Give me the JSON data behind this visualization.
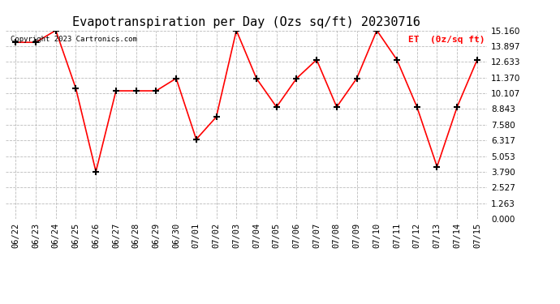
{
  "title": "Evapotranspiration per Day (Ozs sq/ft) 20230716",
  "legend_label": "ET  (0z/sq ft)",
  "copyright_text": "Copyright 2023 Cartronics.com",
  "dates": [
    "06/22",
    "06/23",
    "06/24",
    "06/25",
    "06/26",
    "06/27",
    "06/28",
    "06/29",
    "06/30",
    "07/01",
    "07/02",
    "07/03",
    "07/04",
    "07/05",
    "07/06",
    "07/07",
    "07/08",
    "07/09",
    "07/10",
    "07/11",
    "07/12",
    "07/13",
    "07/14",
    "07/15"
  ],
  "values": [
    14.2,
    14.2,
    15.16,
    10.5,
    3.8,
    10.3,
    10.3,
    10.3,
    11.3,
    6.4,
    8.2,
    15.16,
    11.3,
    9.0,
    11.3,
    12.8,
    9.0,
    11.3,
    15.16,
    12.8,
    9.0,
    4.2,
    9.0,
    12.8
  ],
  "ylim": [
    0,
    15.16
  ],
  "yticks": [
    0.0,
    1.263,
    2.527,
    3.79,
    5.053,
    6.317,
    7.58,
    8.843,
    10.107,
    11.37,
    12.633,
    13.897,
    15.16
  ],
  "line_color": "red",
  "marker": "+",
  "marker_color": "black",
  "marker_size": 6,
  "marker_linewidth": 1.5,
  "line_width": 1.2,
  "background_color": "white",
  "grid_color": "#bbbbbb",
  "title_fontsize": 11,
  "tick_fontsize": 7.5,
  "legend_color": "red",
  "legend_fontsize": 8,
  "copyright_color": "black",
  "copyright_fontsize": 6.5,
  "fig_width": 6.9,
  "fig_height": 3.75,
  "fig_dpi": 100
}
